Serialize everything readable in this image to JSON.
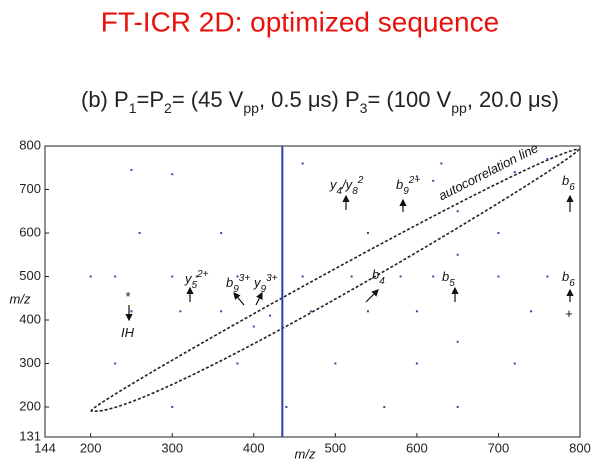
{
  "chart_data": {
    "type": "scatter",
    "title": "FT-ICR 2D: optimized sequence",
    "subtitle_parts": [
      [
        "(b) P",
        ""
      ],
      [
        "1",
        "sub"
      ],
      [
        "=P",
        ""
      ],
      [
        "2",
        "sub"
      ],
      [
        "= (45 V",
        ""
      ],
      [
        "pp",
        "sub"
      ],
      [
        ", 0.5 μs) P",
        ""
      ],
      [
        "3",
        "sub"
      ],
      [
        "= (100 V",
        ""
      ],
      [
        "pp",
        "sub"
      ],
      [
        ", 20.0 μs)",
        ""
      ]
    ],
    "x_label": "m/z",
    "y_label": "m/z",
    "xlim": [
      144,
      800
    ],
    "ylim": [
      131,
      800
    ],
    "xticks": [
      144,
      200,
      300,
      400,
      500,
      600,
      700,
      800
    ],
    "yticks": [
      131,
      200,
      300,
      400,
      500,
      600,
      700,
      800
    ],
    "precursor_mz": 435,
    "precursor_color": "#2a3fa8",
    "series": [
      {
        "color": "#3a4a9a",
        "x": [
          250,
          300,
          460,
          630,
          720,
          760,
          200,
          230,
          300,
          330,
          380,
          460,
          520,
          580,
          620,
          700,
          760,
          250,
          310,
          360,
          470,
          540,
          600,
          740,
          260,
          360,
          540,
          700,
          230,
          380,
          500,
          600,
          720,
          300,
          440,
          560,
          650,
          650,
          650,
          650,
          400,
          420,
          600,
          620
        ],
        "values": [
          745,
          735,
          760,
          760,
          740,
          770,
          500,
          500,
          500,
          500,
          500,
          500,
          500,
          500,
          500,
          500,
          500,
          420,
          420,
          420,
          420,
          420,
          420,
          420,
          600,
          600,
          600,
          600,
          300,
          300,
          300,
          300,
          300,
          200,
          200,
          200,
          200,
          350,
          550,
          650,
          385,
          410,
          730,
          720
        ]
      }
    ],
    "annotations": [
      {
        "parts": [
          [
            "y",
            ""
          ],
          [
            "4",
            "sub"
          ],
          [
            "/y",
            ""
          ],
          [
            "8",
            "sub"
          ],
          [
            "2",
            "sup"
          ]
        ]
      },
      {
        "parts": [
          [
            "b",
            ""
          ],
          [
            "9",
            "sub"
          ],
          [
            "2+",
            "sup"
          ]
        ]
      },
      {
        "parts": [
          [
            "b",
            ""
          ],
          [
            "6",
            "sub"
          ]
        ]
      },
      {
        "parts": [
          [
            "autocorrelation line",
            ""
          ]
        ]
      },
      {
        "parts": [
          [
            "y",
            ""
          ],
          [
            "5",
            "sub"
          ],
          [
            "2+",
            "sup"
          ]
        ]
      },
      {
        "parts": [
          [
            "b",
            ""
          ],
          [
            "9",
            "sub"
          ],
          [
            "3+",
            "sup"
          ]
        ]
      },
      {
        "parts": [
          [
            "y",
            ""
          ],
          [
            "9",
            "sub"
          ],
          [
            "3+",
            "sup"
          ]
        ]
      },
      {
        "parts": [
          [
            "b",
            ""
          ],
          [
            "4",
            "sub"
          ]
        ]
      },
      {
        "parts": [
          [
            "b",
            ""
          ],
          [
            "5",
            "sub"
          ]
        ]
      },
      {
        "parts": [
          [
            "b",
            ""
          ],
          [
            "6",
            "sub"
          ]
        ]
      },
      {
        "parts": [
          [
            "+",
            ""
          ]
        ]
      },
      {
        "parts": [
          [
            "*",
            ""
          ]
        ]
      },
      {
        "parts": [
          [
            "IH",
            ""
          ]
        ]
      }
    ]
  }
}
